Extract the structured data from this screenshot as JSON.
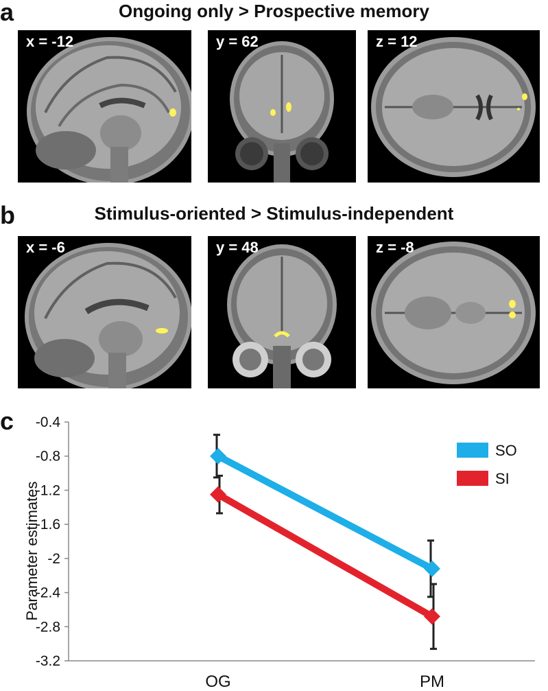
{
  "panel_a": {
    "letter": "a",
    "title": "Ongoing only > Prospective memory",
    "slices": [
      {
        "coord": "x = -12",
        "view": "sagittal"
      },
      {
        "coord": "y = 62",
        "view": "coronal"
      },
      {
        "coord": "z = 12",
        "view": "axial"
      }
    ]
  },
  "panel_b": {
    "letter": "b",
    "title": "Stimulus-oriented > Stimulus-independent",
    "slices": [
      {
        "coord": "x = -6",
        "view": "sagittal"
      },
      {
        "coord": "y = 48",
        "view": "coronal"
      },
      {
        "coord": "z = -8",
        "view": "axial"
      }
    ]
  },
  "panel_c": {
    "letter": "c"
  },
  "chart_data": {
    "type": "line",
    "title": "",
    "xlabel": "",
    "ylabel": "Parameter estimates",
    "categories": [
      "OG",
      "PM"
    ],
    "ylim": [
      -3.2,
      -0.4
    ],
    "yticks": [
      -0.4,
      -0.8,
      -1.2,
      -1.6,
      -2,
      -2.4,
      -2.8,
      -3.2
    ],
    "ytick_labels": [
      "-0.4",
      "-0.8",
      "-1.2",
      "-1.6",
      "-2",
      "-2.4",
      "-2.8",
      "-3.2"
    ],
    "grid": false,
    "legend_position": "top-right",
    "series": [
      {
        "name": "SO",
        "values": [
          -0.8,
          -2.12
        ],
        "errors": [
          0.25,
          0.33
        ],
        "color": "#1eaee8"
      },
      {
        "name": "SI",
        "values": [
          -1.25,
          -2.68
        ],
        "errors": [
          0.22,
          0.38
        ],
        "color": "#e3232c"
      }
    ]
  }
}
